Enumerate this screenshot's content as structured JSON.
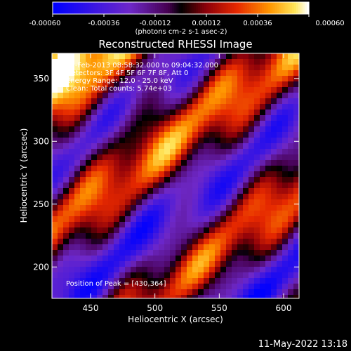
{
  "chart_data": {
    "type": "heatmap",
    "title": "Reconstructed RHESSI Image",
    "xlabel": "Heliocentric X (arcsec)",
    "ylabel": "Heliocentric Y (arcsec)",
    "xlim": [
      420,
      612
    ],
    "ylim": [
      175,
      370
    ],
    "xticks": [
      "450",
      "500",
      "550",
      "600"
    ],
    "yticks": [
      "200",
      "250",
      "300",
      "350"
    ],
    "colorbar": {
      "ticks": [
        "-0.00060",
        "-0.00036",
        "-0.00012",
        "0.00012",
        "0.00036",
        "0.00060"
      ],
      "unit_label": "(photons cm-2 s-1 asec-2)",
      "range": [
        -0.0006,
        0.0006
      ]
    },
    "annotations": [
      "19-Feb-2013 08:58:32.000 to 09:04:32.000",
      "Detectors: 3F 4F 5F 6F 7F 8F, Att 0",
      "Energy Range: 12.0 - 25.0 keV",
      "Clean: Total counts: 5.74e+03"
    ],
    "peak_label": "Position of Peak = [430,364]",
    "peak": [
      430,
      364
    ],
    "stripe_angle_deg": 37,
    "colors": {
      "background": "#000000",
      "text": "#ffffff"
    }
  },
  "footer": {
    "timestamp": "11-May-2022 13:18"
  }
}
